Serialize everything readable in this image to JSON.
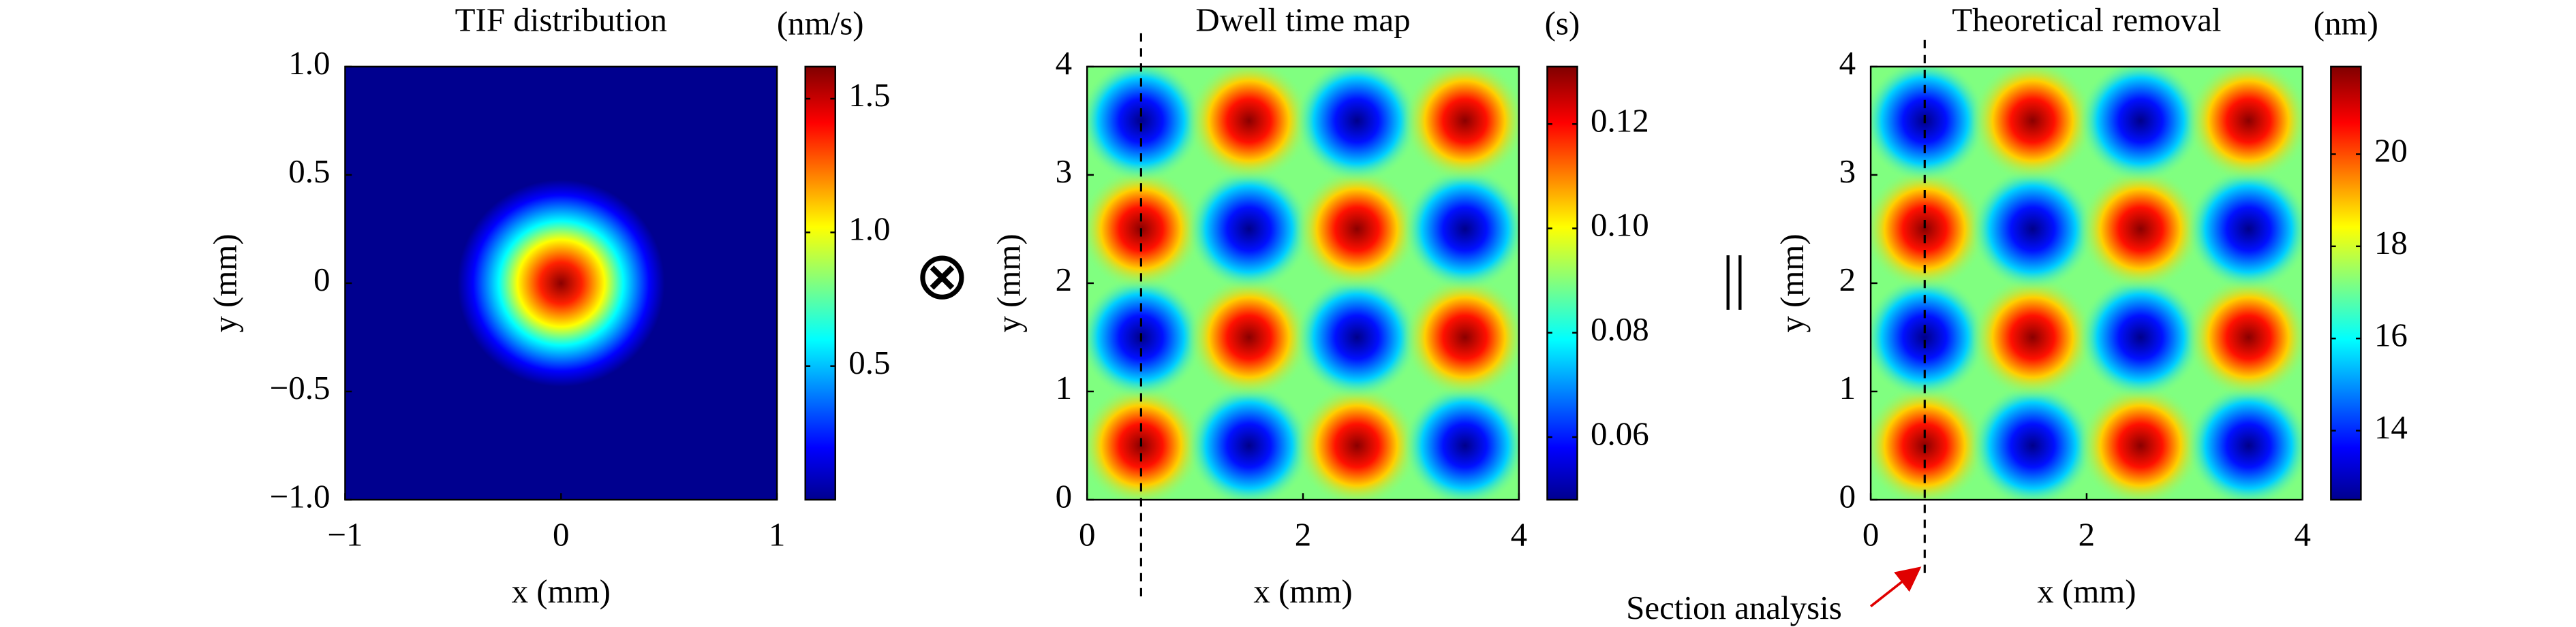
{
  "chart_data": [
    {
      "type": "heatmap",
      "title": "TIF distribution",
      "colorbar_label": "(nm/s)",
      "xlabel": "x (mm)",
      "ylabel": "y (mm)",
      "xlim": [
        -1,
        1
      ],
      "ylim": [
        -1,
        1
      ],
      "xticks": [
        {
          "value": -1,
          "label": "−1"
        },
        0,
        1
      ],
      "yticks": [
        {
          "value": -1,
          "label": "−1.0"
        },
        {
          "value": -0.5,
          "label": "−0.5"
        },
        0,
        0.5,
        {
          "value": 1,
          "label": "1.0"
        }
      ],
      "clim": [
        0,
        1.62
      ],
      "cticks": [
        0.5,
        {
          "value": 1,
          "label": "1.0"
        },
        1.5
      ],
      "colormap": "jet"
    },
    {
      "type": "heatmap",
      "title": "Dwell time map",
      "colorbar_label": "(s)",
      "xlabel": "x (mm)",
      "ylabel": "y (mm)",
      "xlim": [
        0,
        4
      ],
      "ylim": [
        0,
        4
      ],
      "xticks": [
        0,
        2,
        4
      ],
      "yticks": [
        0,
        1,
        2,
        3,
        4
      ],
      "clim": [
        0.048,
        0.131
      ],
      "cticks": [
        0.12,
        {
          "value": 0.1,
          "label": "0.10"
        },
        0.06,
        0.08
      ],
      "colormap": "jet"
    },
    {
      "type": "heatmap",
      "title": "Theoretical removal",
      "colorbar_label": "(nm)",
      "xlabel": "x (mm)",
      "ylabel": "y (mm)",
      "xlim": [
        0,
        4
      ],
      "ylim": [
        0,
        4
      ],
      "xticks": [
        0,
        2,
        4
      ],
      "yticks": [
        0,
        1,
        2,
        3,
        4
      ],
      "clim": [
        12.5,
        21.9
      ],
      "cticks": [
        20,
        18,
        16,
        14
      ],
      "colormap": "jet",
      "annotation": "Section analysis"
    }
  ],
  "operators": [
    "⊗",
    "||"
  ]
}
